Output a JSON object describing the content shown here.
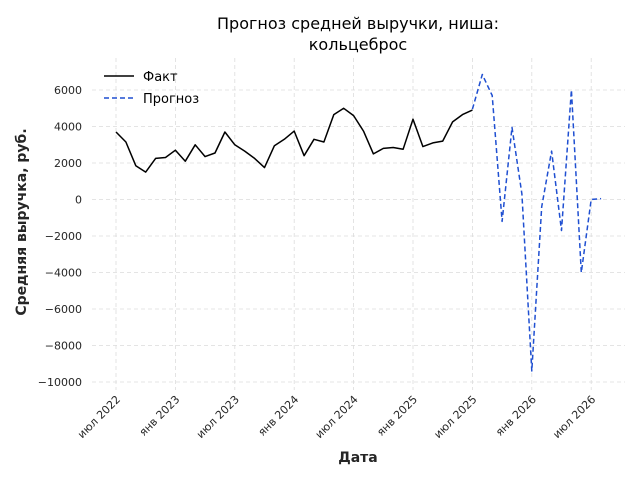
{
  "chart_data": {
    "type": "line",
    "title_line1": "Прогноз средней выручки, ниша:",
    "title_line2": "кольцеброс",
    "xlabel": "Дата",
    "ylabel": "Средняя выручка, руб.",
    "x_ticks": [
      "июл 2022",
      "янв 2023",
      "июл 2023",
      "янв 2024",
      "июл 2024",
      "янв 2025",
      "июл 2025",
      "янв 2026",
      "июл 2026"
    ],
    "y_ticks": [
      "6000",
      "4000",
      "2000",
      "0",
      "−2000",
      "−4000",
      "−6000",
      "−8000",
      "−10000"
    ],
    "ylim": [
      -10000,
      7000
    ],
    "grid": true,
    "legend_position": "top-left",
    "series": [
      {
        "name": "Факт",
        "color": "#000000",
        "style": "solid",
        "x": [
          "2022-07",
          "2022-08",
          "2022-09",
          "2022-10",
          "2022-11",
          "2022-12",
          "2023-01",
          "2023-02",
          "2023-03",
          "2023-04",
          "2023-05",
          "2023-06",
          "2023-07",
          "2023-08",
          "2023-09",
          "2023-10",
          "2023-11",
          "2023-12",
          "2024-01",
          "2024-02",
          "2024-03",
          "2024-04",
          "2024-05",
          "2024-06",
          "2024-07",
          "2024-08",
          "2024-09",
          "2024-10",
          "2024-11",
          "2024-12",
          "2025-01",
          "2025-02",
          "2025-03",
          "2025-04",
          "2025-05",
          "2025-06",
          "2025-07"
        ],
        "values": [
          3700,
          3150,
          1850,
          1500,
          2250,
          2300,
          2700,
          2100,
          3000,
          2350,
          2550,
          3700,
          3000,
          2650,
          2250,
          1750,
          2950,
          3300,
          3750,
          2400,
          3300,
          3150,
          4650,
          5000,
          4600,
          3750,
          2500,
          2800,
          2850,
          2750,
          4400,
          2900,
          3100,
          3200,
          4250,
          4650,
          4900
        ]
      },
      {
        "name": "Прогноз",
        "color": "#1f4fd1",
        "style": "dashed",
        "x": [
          "2025-07",
          "2025-08",
          "2025-09",
          "2025-10",
          "2025-11",
          "2025-12",
          "2026-01",
          "2026-02",
          "2026-03",
          "2026-04",
          "2026-05",
          "2026-06",
          "2026-07",
          "2026-08"
        ],
        "values": [
          4950,
          6850,
          5700,
          -1200,
          3950,
          300,
          -9400,
          -400,
          2650,
          -1700,
          6000,
          -4000,
          0,
          50
        ]
      }
    ]
  }
}
